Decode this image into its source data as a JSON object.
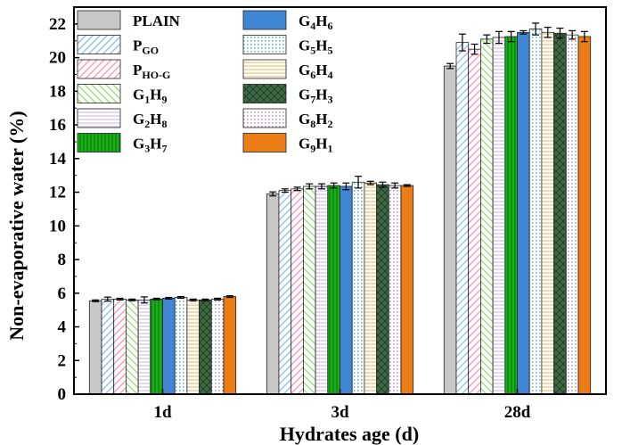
{
  "chart_data": {
    "type": "bar",
    "title": "",
    "xlabel": "Hydrates age (d)",
    "ylabel": "Non-evaporative water (%)",
    "ylim": [
      0,
      23
    ],
    "yticks": [
      0,
      2,
      4,
      6,
      8,
      10,
      12,
      14,
      16,
      18,
      20,
      22
    ],
    "categories": [
      "1d",
      "3d",
      "28d"
    ],
    "legend_position": "top-left",
    "series": [
      {
        "name": "PLAIN",
        "label": {
          "base": "PLAIN",
          "parts": []
        },
        "values": [
          5.55,
          11.9,
          19.5
        ],
        "errors": [
          0.05,
          0.12,
          0.15
        ],
        "color": "#c8c8c8",
        "pattern": "solid"
      },
      {
        "name": "PGO",
        "label": {
          "base": "P",
          "parts": [
            {
              "t": "GO",
              "sub": true
            }
          ]
        },
        "values": [
          5.65,
          12.1,
          20.9
        ],
        "errors": [
          0.12,
          0.1,
          0.5
        ],
        "color": "#9ec8f0",
        "pattern": "diag-right"
      },
      {
        "name": "PHO-G",
        "label": {
          "base": "P",
          "parts": [
            {
              "t": "HO-G",
              "sub": true
            }
          ]
        },
        "values": [
          5.65,
          12.2,
          20.5
        ],
        "errors": [
          0.05,
          0.1,
          0.3
        ],
        "color": "#f4a6c4",
        "pattern": "diag-right"
      },
      {
        "name": "G1H9",
        "label": {
          "base": "G",
          "parts": [
            {
              "t": "1",
              "sub": true
            },
            {
              "t": "H",
              "sub": false
            },
            {
              "t": "9",
              "sub": true
            }
          ]
        },
        "values": [
          5.6,
          12.35,
          21.1
        ],
        "errors": [
          0.05,
          0.15,
          0.25
        ],
        "color": "#a6e08a",
        "pattern": "diag-left"
      },
      {
        "name": "G2H8",
        "label": {
          "base": "G",
          "parts": [
            {
              "t": "2",
              "sub": true
            },
            {
              "t": "H",
              "sub": false
            },
            {
              "t": "8",
              "sub": true
            }
          ]
        },
        "values": [
          5.6,
          12.35,
          21.2
        ],
        "errors": [
          0.18,
          0.15,
          0.35
        ],
        "color": "#d6c2ef",
        "pattern": "horizontal"
      },
      {
        "name": "G3H7",
        "label": {
          "base": "G",
          "parts": [
            {
              "t": "3",
              "sub": true
            },
            {
              "t": "H",
              "sub": false
            },
            {
              "t": "7",
              "sub": true
            }
          ]
        },
        "values": [
          5.65,
          12.4,
          21.25
        ],
        "errors": [
          0.05,
          0.15,
          0.3
        ],
        "color": "#18b018",
        "pattern": "vertical"
      },
      {
        "name": "G4H6",
        "label": {
          "base": "G",
          "parts": [
            {
              "t": "4",
              "sub": true
            },
            {
              "t": "H",
              "sub": false
            },
            {
              "t": "6",
              "sub": true
            }
          ]
        },
        "values": [
          5.7,
          12.35,
          21.5
        ],
        "errors": [
          0.05,
          0.2,
          0.1
        ],
        "color": "#3f86d4",
        "pattern": "solid"
      },
      {
        "name": "G5H5",
        "label": {
          "base": "G",
          "parts": [
            {
              "t": "5",
              "sub": true
            },
            {
              "t": "H",
              "sub": false
            },
            {
              "t": "5",
              "sub": true
            }
          ]
        },
        "values": [
          5.75,
          12.6,
          21.7
        ],
        "errors": [
          0.05,
          0.35,
          0.35
        ],
        "color": "#5fbcbc",
        "pattern": "dots"
      },
      {
        "name": "G6H4",
        "label": {
          "base": "G",
          "parts": [
            {
              "t": "6",
              "sub": true
            },
            {
              "t": "H",
              "sub": false
            },
            {
              "t": "4",
              "sub": true
            }
          ]
        },
        "values": [
          5.6,
          12.55,
          21.5
        ],
        "errors": [
          0.05,
          0.1,
          0.3
        ],
        "color": "#f2c27c",
        "pattern": "horizontal"
      },
      {
        "name": "G7H3",
        "label": {
          "base": "G",
          "parts": [
            {
              "t": "7",
              "sub": true
            },
            {
              "t": "H",
              "sub": false
            },
            {
              "t": "3",
              "sub": true
            }
          ]
        },
        "values": [
          5.6,
          12.45,
          21.45
        ],
        "errors": [
          0.05,
          0.15,
          0.3
        ],
        "color": "#3d6a45",
        "pattern": "crosshatch"
      },
      {
        "name": "G8H2",
        "label": {
          "base": "G",
          "parts": [
            {
              "t": "8",
              "sub": true
            },
            {
              "t": "H",
              "sub": false
            },
            {
              "t": "2",
              "sub": true
            }
          ]
        },
        "values": [
          5.65,
          12.4,
          21.35
        ],
        "errors": [
          0.05,
          0.15,
          0.25
        ],
        "color": "#b59ac9",
        "pattern": "dots"
      },
      {
        "name": "G9H1",
        "label": {
          "base": "G",
          "parts": [
            {
              "t": "9",
              "sub": true
            },
            {
              "t": "H",
              "sub": false
            },
            {
              "t": "1",
              "sub": true
            }
          ]
        },
        "values": [
          5.8,
          12.4,
          21.25
        ],
        "errors": [
          0.05,
          0.05,
          0.3
        ],
        "color": "#ea7d15",
        "pattern": "solid"
      }
    ]
  }
}
